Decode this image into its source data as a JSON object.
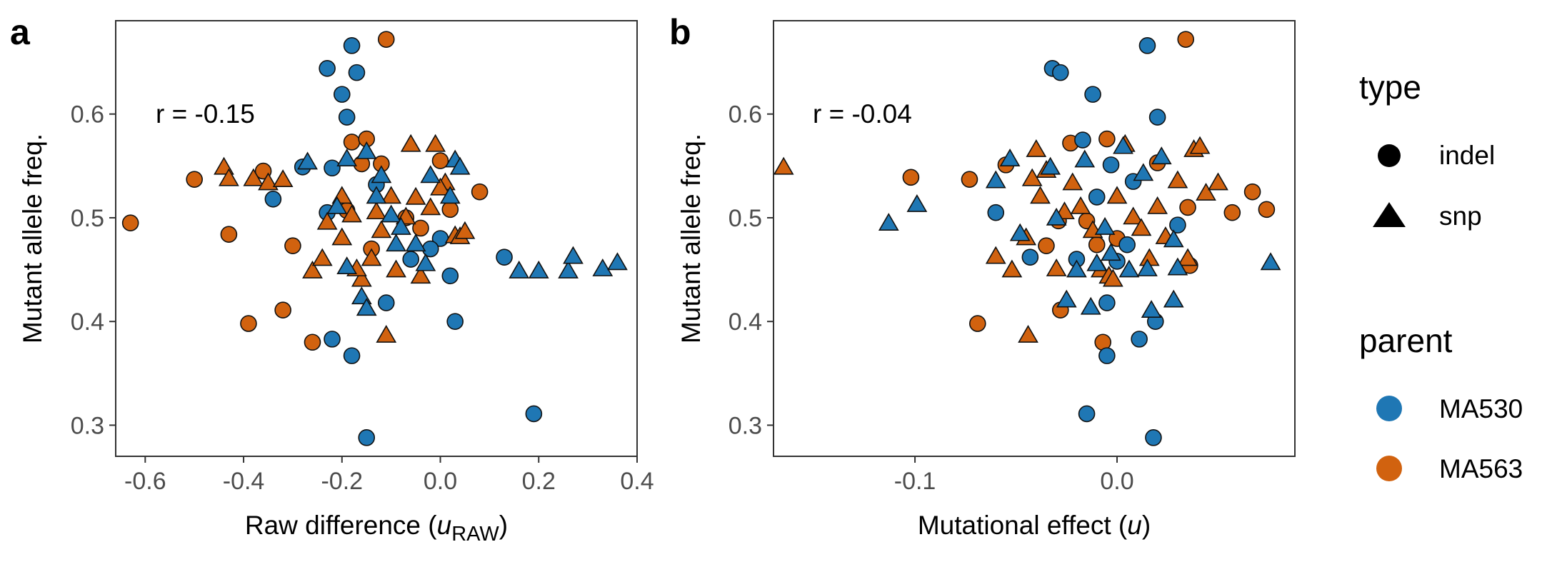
{
  "colors": {
    "MA530": "#1f77b4",
    "MA563": "#d1620f"
  },
  "legend": {
    "type_title": "type",
    "type_items": [
      {
        "shape": "circle",
        "label": "indel"
      },
      {
        "shape": "triangle",
        "label": "snp"
      }
    ],
    "parent_title": "parent",
    "parent_items": [
      {
        "color": "MA530",
        "label": "MA530"
      },
      {
        "color": "MA563",
        "label": "MA563"
      }
    ]
  },
  "chart_data": [
    {
      "type": "scatter",
      "panel": "a",
      "annotation": "r = -0.15",
      "xlabel_main": "Raw difference (",
      "xlabel_var": "u",
      "xlabel_sub": "RAW",
      "xlabel_end": ")",
      "ylabel": "Mutant allele freq.",
      "xlim": [
        -0.66,
        0.4
      ],
      "ylim": [
        0.27,
        0.69
      ],
      "xticks": [
        {
          "v": -0.6,
          "label": "-0.6"
        },
        {
          "v": -0.4,
          "label": "-0.4"
        },
        {
          "v": -0.2,
          "label": "-0.2"
        },
        {
          "v": 0.0,
          "label": "0.0"
        },
        {
          "v": 0.2,
          "label": "0.2"
        },
        {
          "v": 0.4,
          "label": "0.4"
        }
      ],
      "yticks": [
        {
          "v": 0.3,
          "label": "0.3"
        },
        {
          "v": 0.4,
          "label": "0.4"
        },
        {
          "v": 0.5,
          "label": "0.5"
        },
        {
          "v": 0.6,
          "label": "0.6"
        }
      ],
      "points": [
        [
          -0.63,
          0.495,
          "indel",
          "MA563"
        ],
        [
          -0.5,
          0.537,
          "indel",
          "MA563"
        ],
        [
          -0.43,
          0.484,
          "indel",
          "MA563"
        ],
        [
          -0.39,
          0.398,
          "indel",
          "MA563"
        ],
        [
          -0.32,
          0.411,
          "indel",
          "MA563"
        ],
        [
          -0.3,
          0.473,
          "indel",
          "MA563"
        ],
        [
          -0.36,
          0.545,
          "indel",
          "MA563"
        ],
        [
          -0.26,
          0.38,
          "indel",
          "MA563"
        ],
        [
          -0.18,
          0.573,
          "indel",
          "MA563"
        ],
        [
          -0.15,
          0.576,
          "indel",
          "MA563"
        ],
        [
          -0.16,
          0.552,
          "indel",
          "MA563"
        ],
        [
          -0.12,
          0.552,
          "indel",
          "MA563"
        ],
        [
          -0.11,
          0.672,
          "indel",
          "MA563"
        ],
        [
          -0.19,
          0.507,
          "indel",
          "MA563"
        ],
        [
          -0.14,
          0.47,
          "indel",
          "MA563"
        ],
        [
          -0.04,
          0.49,
          "indel",
          "MA563"
        ],
        [
          0.0,
          0.555,
          "indel",
          "MA563"
        ],
        [
          0.02,
          0.508,
          "indel",
          "MA563"
        ],
        [
          0.08,
          0.525,
          "indel",
          "MA563"
        ],
        [
          -0.07,
          0.5,
          "indel",
          "MA563"
        ],
        [
          -0.18,
          0.666,
          "indel",
          "MA530"
        ],
        [
          -0.23,
          0.644,
          "indel",
          "MA530"
        ],
        [
          -0.17,
          0.64,
          "indel",
          "MA530"
        ],
        [
          -0.2,
          0.619,
          "indel",
          "MA530"
        ],
        [
          -0.19,
          0.597,
          "indel",
          "MA530"
        ],
        [
          -0.28,
          0.549,
          "indel",
          "MA530"
        ],
        [
          -0.22,
          0.548,
          "indel",
          "MA530"
        ],
        [
          -0.13,
          0.532,
          "indel",
          "MA530"
        ],
        [
          -0.34,
          0.518,
          "indel",
          "MA530"
        ],
        [
          -0.23,
          0.505,
          "indel",
          "MA530"
        ],
        [
          -0.06,
          0.46,
          "indel",
          "MA530"
        ],
        [
          0.0,
          0.48,
          "indel",
          "MA530"
        ],
        [
          0.02,
          0.444,
          "indel",
          "MA530"
        ],
        [
          -0.11,
          0.418,
          "indel",
          "MA530"
        ],
        [
          0.03,
          0.4,
          "indel",
          "MA530"
        ],
        [
          -0.22,
          0.383,
          "indel",
          "MA530"
        ],
        [
          -0.18,
          0.367,
          "indel",
          "MA530"
        ],
        [
          0.13,
          0.462,
          "indel",
          "MA530"
        ],
        [
          0.19,
          0.311,
          "indel",
          "MA530"
        ],
        [
          -0.15,
          0.288,
          "indel",
          "MA530"
        ],
        [
          -0.02,
          0.47,
          "indel",
          "MA530"
        ],
        [
          -0.44,
          0.548,
          "snp",
          "MA563"
        ],
        [
          -0.43,
          0.537,
          "snp",
          "MA563"
        ],
        [
          -0.38,
          0.537,
          "snp",
          "MA563"
        ],
        [
          -0.35,
          0.533,
          "snp",
          "MA563"
        ],
        [
          -0.32,
          0.536,
          "snp",
          "MA563"
        ],
        [
          -0.26,
          0.448,
          "snp",
          "MA563"
        ],
        [
          -0.24,
          0.46,
          "snp",
          "MA563"
        ],
        [
          -0.2,
          0.48,
          "snp",
          "MA563"
        ],
        [
          -0.18,
          0.502,
          "snp",
          "MA563"
        ],
        [
          -0.16,
          0.44,
          "snp",
          "MA563"
        ],
        [
          -0.14,
          0.46,
          "snp",
          "MA563"
        ],
        [
          -0.12,
          0.487,
          "snp",
          "MA563"
        ],
        [
          -0.1,
          0.52,
          "snp",
          "MA563"
        ],
        [
          -0.09,
          0.449,
          "snp",
          "MA563"
        ],
        [
          -0.07,
          0.5,
          "snp",
          "MA563"
        ],
        [
          -0.06,
          0.57,
          "snp",
          "MA563"
        ],
        [
          -0.05,
          0.519,
          "snp",
          "MA563"
        ],
        [
          -0.04,
          0.443,
          "snp",
          "MA563"
        ],
        [
          -0.02,
          0.509,
          "snp",
          "MA563"
        ],
        [
          -0.01,
          0.57,
          "snp",
          "MA563"
        ],
        [
          0.01,
          0.533,
          "snp",
          "MA563"
        ],
        [
          0.03,
          0.482,
          "snp",
          "MA563"
        ],
        [
          0.04,
          0.481,
          "snp",
          "MA563"
        ],
        [
          0.05,
          0.486,
          "snp",
          "MA563"
        ],
        [
          -0.11,
          0.386,
          "snp",
          "MA563"
        ],
        [
          -0.2,
          0.52,
          "snp",
          "MA563"
        ],
        [
          -0.13,
          0.505,
          "snp",
          "MA563"
        ],
        [
          -0.23,
          0.495,
          "snp",
          "MA563"
        ],
        [
          -0.17,
          0.45,
          "snp",
          "MA563"
        ],
        [
          0.0,
          0.528,
          "snp",
          "MA563"
        ],
        [
          -0.27,
          0.553,
          "snp",
          "MA530"
        ],
        [
          -0.19,
          0.556,
          "snp",
          "MA530"
        ],
        [
          -0.15,
          0.563,
          "snp",
          "MA530"
        ],
        [
          -0.13,
          0.52,
          "snp",
          "MA530"
        ],
        [
          -0.21,
          0.51,
          "snp",
          "MA530"
        ],
        [
          -0.1,
          0.502,
          "snp",
          "MA530"
        ],
        [
          -0.08,
          0.49,
          "snp",
          "MA530"
        ],
        [
          -0.05,
          0.474,
          "snp",
          "MA530"
        ],
        [
          -0.03,
          0.455,
          "snp",
          "MA530"
        ],
        [
          -0.16,
          0.423,
          "snp",
          "MA530"
        ],
        [
          -0.15,
          0.412,
          "snp",
          "MA530"
        ],
        [
          -0.19,
          0.452,
          "snp",
          "MA530"
        ],
        [
          0.03,
          0.555,
          "snp",
          "MA530"
        ],
        [
          0.04,
          0.548,
          "snp",
          "MA530"
        ],
        [
          0.02,
          0.52,
          "snp",
          "MA530"
        ],
        [
          0.16,
          0.448,
          "snp",
          "MA530"
        ],
        [
          0.2,
          0.448,
          "snp",
          "MA530"
        ],
        [
          0.26,
          0.448,
          "snp",
          "MA530"
        ],
        [
          0.27,
          0.462,
          "snp",
          "MA530"
        ],
        [
          0.33,
          0.45,
          "snp",
          "MA530"
        ],
        [
          0.36,
          0.456,
          "snp",
          "MA530"
        ],
        [
          -0.12,
          0.54,
          "snp",
          "MA530"
        ],
        [
          -0.02,
          0.54,
          "snp",
          "MA530"
        ],
        [
          -0.09,
          0.474,
          "snp",
          "MA530"
        ]
      ]
    },
    {
      "type": "scatter",
      "panel": "b",
      "annotation": "r = -0.04",
      "xlabel_main": "Mutational effect (",
      "xlabel_var": "u",
      "xlabel_sub": "",
      "xlabel_end": ")",
      "ylabel": "Mutant allele freq.",
      "xlim": [
        -0.17,
        0.088
      ],
      "ylim": [
        0.27,
        0.69
      ],
      "xticks": [
        {
          "v": -0.1,
          "label": "-0.1"
        },
        {
          "v": 0.0,
          "label": "0.0"
        }
      ],
      "yticks": [
        {
          "v": 0.3,
          "label": "0.3"
        },
        {
          "v": 0.4,
          "label": "0.4"
        },
        {
          "v": 0.5,
          "label": "0.5"
        },
        {
          "v": 0.6,
          "label": "0.6"
        }
      ],
      "points": [
        [
          -0.102,
          0.539,
          "indel",
          "MA563"
        ],
        [
          -0.073,
          0.537,
          "indel",
          "MA563"
        ],
        [
          -0.069,
          0.398,
          "indel",
          "MA563"
        ],
        [
          -0.055,
          0.551,
          "indel",
          "MA563"
        ],
        [
          -0.035,
          0.473,
          "indel",
          "MA563"
        ],
        [
          -0.029,
          0.497,
          "indel",
          "MA563"
        ],
        [
          -0.028,
          0.411,
          "indel",
          "MA563"
        ],
        [
          -0.023,
          0.572,
          "indel",
          "MA563"
        ],
        [
          -0.015,
          0.497,
          "indel",
          "MA563"
        ],
        [
          -0.01,
          0.474,
          "indel",
          "MA563"
        ],
        [
          -0.005,
          0.576,
          "indel",
          "MA563"
        ],
        [
          -0.007,
          0.38,
          "indel",
          "MA563"
        ],
        [
          0.0,
          0.48,
          "indel",
          "MA563"
        ],
        [
          0.02,
          0.553,
          "indel",
          "MA563"
        ],
        [
          0.034,
          0.672,
          "indel",
          "MA563"
        ],
        [
          0.035,
          0.51,
          "indel",
          "MA563"
        ],
        [
          0.036,
          0.454,
          "indel",
          "MA563"
        ],
        [
          0.057,
          0.505,
          "indel",
          "MA563"
        ],
        [
          0.067,
          0.525,
          "indel",
          "MA563"
        ],
        [
          0.074,
          0.508,
          "indel",
          "MA563"
        ],
        [
          -0.032,
          0.644,
          "indel",
          "MA530"
        ],
        [
          -0.028,
          0.64,
          "indel",
          "MA530"
        ],
        [
          -0.012,
          0.619,
          "indel",
          "MA530"
        ],
        [
          0.015,
          0.666,
          "indel",
          "MA530"
        ],
        [
          0.02,
          0.597,
          "indel",
          "MA530"
        ],
        [
          -0.017,
          0.575,
          "indel",
          "MA530"
        ],
        [
          -0.06,
          0.505,
          "indel",
          "MA530"
        ],
        [
          -0.043,
          0.462,
          "indel",
          "MA530"
        ],
        [
          -0.015,
          0.311,
          "indel",
          "MA530"
        ],
        [
          -0.005,
          0.367,
          "indel",
          "MA530"
        ],
        [
          -0.005,
          0.418,
          "indel",
          "MA530"
        ],
        [
          0.0,
          0.458,
          "indel",
          "MA530"
        ],
        [
          0.005,
          0.474,
          "indel",
          "MA530"
        ],
        [
          0.011,
          0.383,
          "indel",
          "MA530"
        ],
        [
          0.019,
          0.4,
          "indel",
          "MA530"
        ],
        [
          0.018,
          0.288,
          "indel",
          "MA530"
        ],
        [
          -0.01,
          0.52,
          "indel",
          "MA530"
        ],
        [
          0.03,
          0.493,
          "indel",
          "MA530"
        ],
        [
          -0.02,
          0.46,
          "indel",
          "MA530"
        ],
        [
          -0.003,
          0.551,
          "indel",
          "MA530"
        ],
        [
          0.008,
          0.535,
          "indel",
          "MA530"
        ],
        [
          -0.165,
          0.548,
          "snp",
          "MA563"
        ],
        [
          -0.06,
          0.462,
          "snp",
          "MA563"
        ],
        [
          -0.052,
          0.449,
          "snp",
          "MA563"
        ],
        [
          -0.045,
          0.48,
          "snp",
          "MA563"
        ],
        [
          -0.044,
          0.386,
          "snp",
          "MA563"
        ],
        [
          -0.042,
          0.537,
          "snp",
          "MA563"
        ],
        [
          -0.04,
          0.565,
          "snp",
          "MA563"
        ],
        [
          -0.038,
          0.52,
          "snp",
          "MA563"
        ],
        [
          -0.035,
          0.545,
          "snp",
          "MA563"
        ],
        [
          -0.03,
          0.45,
          "snp",
          "MA563"
        ],
        [
          -0.026,
          0.505,
          "snp",
          "MA563"
        ],
        [
          -0.022,
          0.533,
          "snp",
          "MA563"
        ],
        [
          -0.018,
          0.51,
          "snp",
          "MA563"
        ],
        [
          -0.012,
          0.487,
          "snp",
          "MA563"
        ],
        [
          -0.008,
          0.449,
          "snp",
          "MA563"
        ],
        [
          -0.004,
          0.443,
          "snp",
          "MA563"
        ],
        [
          0.0,
          0.52,
          "snp",
          "MA563"
        ],
        [
          0.004,
          0.57,
          "snp",
          "MA563"
        ],
        [
          0.008,
          0.5,
          "snp",
          "MA563"
        ],
        [
          0.012,
          0.489,
          "snp",
          "MA563"
        ],
        [
          0.016,
          0.46,
          "snp",
          "MA563"
        ],
        [
          0.02,
          0.51,
          "snp",
          "MA563"
        ],
        [
          0.024,
          0.481,
          "snp",
          "MA563"
        ],
        [
          0.03,
          0.535,
          "snp",
          "MA563"
        ],
        [
          0.035,
          0.46,
          "snp",
          "MA563"
        ],
        [
          0.038,
          0.565,
          "snp",
          "MA563"
        ],
        [
          0.041,
          0.568,
          "snp",
          "MA563"
        ],
        [
          0.044,
          0.523,
          "snp",
          "MA563"
        ],
        [
          0.05,
          0.533,
          "snp",
          "MA563"
        ],
        [
          -0.002,
          0.44,
          "snp",
          "MA563"
        ],
        [
          -0.113,
          0.494,
          "snp",
          "MA530"
        ],
        [
          -0.099,
          0.512,
          "snp",
          "MA530"
        ],
        [
          -0.06,
          0.535,
          "snp",
          "MA530"
        ],
        [
          -0.053,
          0.556,
          "snp",
          "MA530"
        ],
        [
          -0.048,
          0.484,
          "snp",
          "MA530"
        ],
        [
          -0.033,
          0.548,
          "snp",
          "MA530"
        ],
        [
          -0.03,
          0.499,
          "snp",
          "MA530"
        ],
        [
          -0.025,
          0.42,
          "snp",
          "MA530"
        ],
        [
          -0.02,
          0.449,
          "snp",
          "MA530"
        ],
        [
          -0.016,
          0.555,
          "snp",
          "MA530"
        ],
        [
          -0.013,
          0.413,
          "snp",
          "MA530"
        ],
        [
          -0.01,
          0.455,
          "snp",
          "MA530"
        ],
        [
          -0.006,
          0.49,
          "snp",
          "MA530"
        ],
        [
          0.003,
          0.568,
          "snp",
          "MA530"
        ],
        [
          0.006,
          0.449,
          "snp",
          "MA530"
        ],
        [
          0.013,
          0.542,
          "snp",
          "MA530"
        ],
        [
          0.015,
          0.45,
          "snp",
          "MA530"
        ],
        [
          0.017,
          0.41,
          "snp",
          "MA530"
        ],
        [
          0.022,
          0.558,
          "snp",
          "MA530"
        ],
        [
          0.028,
          0.42,
          "snp",
          "MA530"
        ],
        [
          0.028,
          0.478,
          "snp",
          "MA530"
        ],
        [
          0.03,
          0.451,
          "snp",
          "MA530"
        ],
        [
          0.076,
          0.456,
          "snp",
          "MA530"
        ],
        [
          -0.003,
          0.465,
          "snp",
          "MA530"
        ]
      ]
    }
  ]
}
